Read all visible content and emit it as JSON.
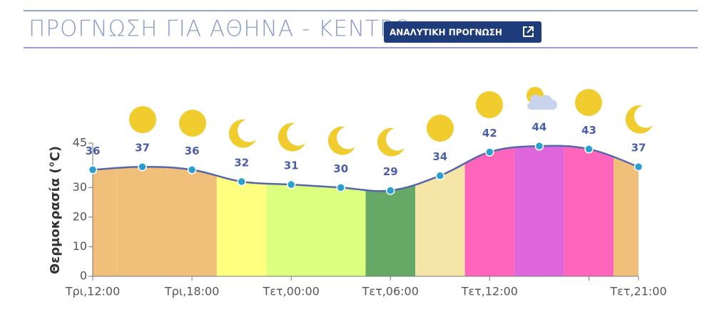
{
  "header": {
    "title": "ΠΡΟΓΝΩΣΗ ΓΙΑ ΑΘΗΝΑ - ΚΕΝΤΡΟ",
    "button": "ΑΝΑΛΥΤΙΚΗ ΠΡΟΓΝΩΣΗ"
  },
  "chart_data": {
    "type": "area",
    "y_label": "Θερμοκρασία (°C)",
    "categories": [
      "Τρι,12:00",
      null,
      "Τρι,18:00",
      null,
      "Τετ,00:00",
      null,
      "Τετ,06:00",
      null,
      "Τετ,12:00",
      null,
      null,
      "Τετ,21:00"
    ],
    "values": [
      36,
      37,
      36,
      32,
      31,
      30,
      29,
      34,
      42,
      44,
      43,
      37
    ],
    "band_colors": [
      "#f0c07a",
      "#f0c07a",
      "#f0c07a",
      "#ffff80",
      "#ddff80",
      "#ddff80",
      "#66a866",
      "#f5e6a8",
      "#ff66bb",
      "#dd66dd",
      "#ff66bb",
      "#f0c07a"
    ],
    "line_color": "#5566aa",
    "point_color": "#2aa0d0",
    "label_color": "#4a5fa8",
    "ylim": [
      0,
      45
    ],
    "yticks": [
      0,
      10,
      20,
      30,
      45
    ]
  }
}
